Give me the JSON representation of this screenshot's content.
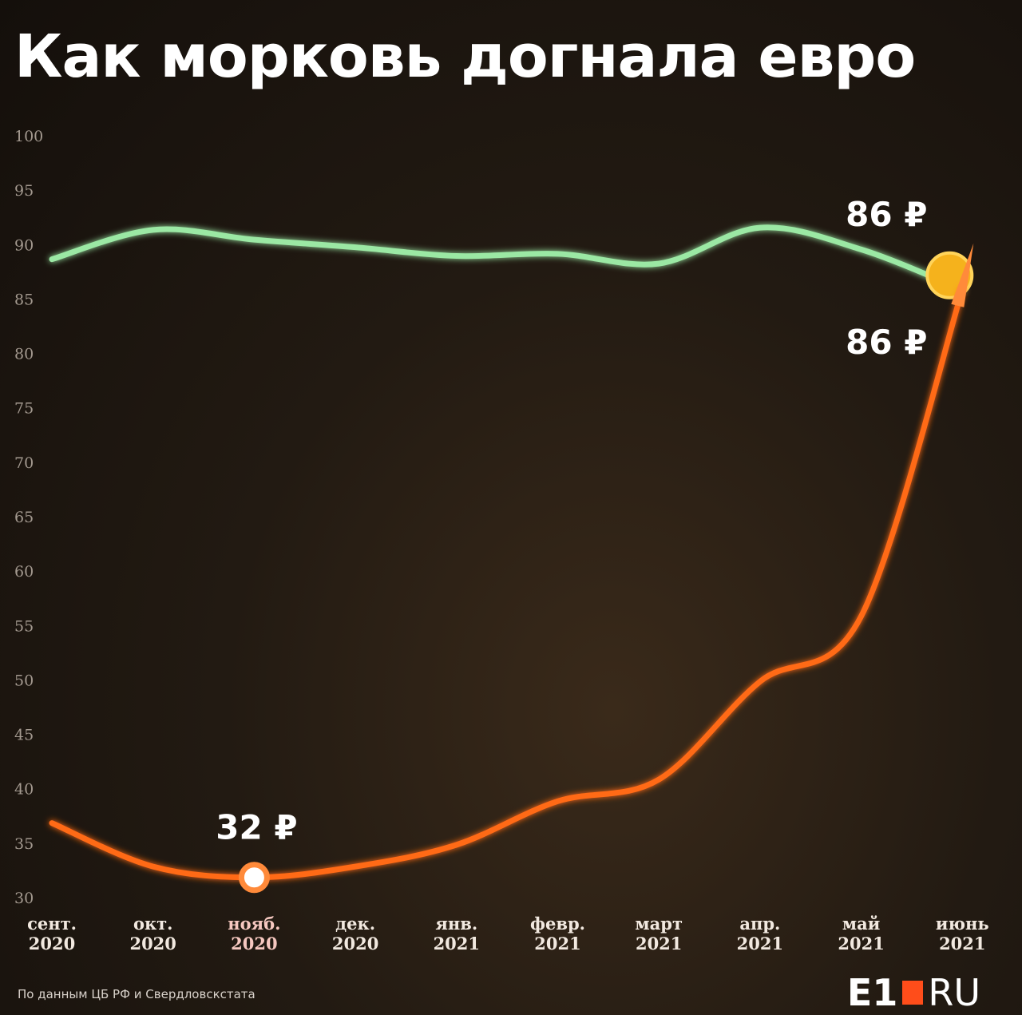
{
  "chart_data": {
    "type": "line",
    "title": "Как морковь догнала евро",
    "categories": [
      "сент. 2020",
      "окт. 2020",
      "нояб. 2020",
      "дек. 2020",
      "янв. 2021",
      "февр. 2021",
      "март 2021",
      "апр. 2021",
      "май 2021",
      "июнь 2021"
    ],
    "series": [
      {
        "color": "#9be8a4",
        "values": [
          88.8,
          91.5,
          90.6,
          89.9,
          89.1,
          89.3,
          88.4,
          91.7,
          89.7,
          86
        ],
        "value_labels": [
          null,
          null,
          null,
          null,
          null,
          null,
          null,
          null,
          null,
          "86 ₽"
        ]
      },
      {
        "color": "#ff6a13",
        "values": [
          37,
          33,
          32,
          33,
          35,
          39,
          41,
          50,
          56,
          86
        ],
        "value_labels": [
          null,
          null,
          "32 ₽",
          null,
          null,
          null,
          null,
          null,
          null,
          "86 ₽"
        ]
      }
    ],
    "ylim": [
      30,
      100
    ],
    "yticks": [
      30,
      35,
      40,
      45,
      50,
      55,
      60,
      65,
      70,
      75,
      80,
      85,
      90,
      95,
      100
    ],
    "source": "По данным ЦБ РФ и Свердловскстата",
    "logo": [
      "E1",
      "RU"
    ]
  }
}
